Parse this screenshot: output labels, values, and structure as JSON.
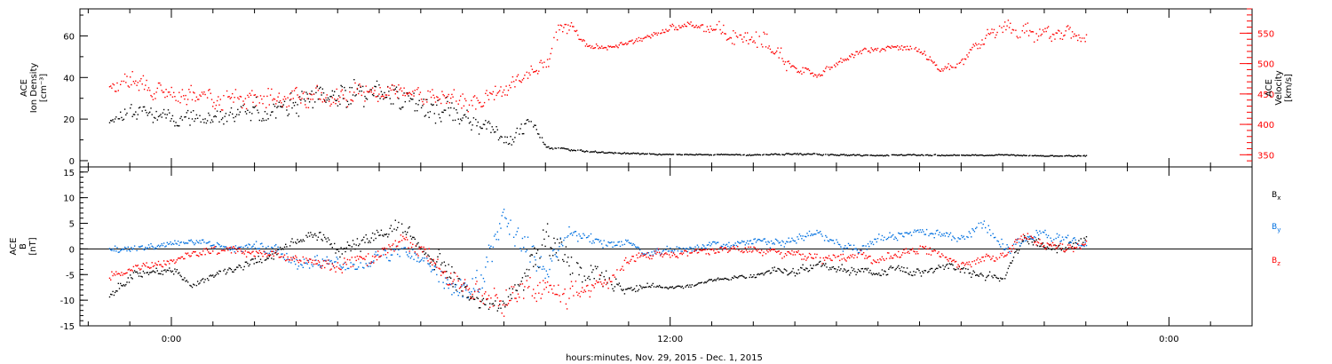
{
  "chart_data": [
    {
      "type": "scatter",
      "panel": "ACE plasma",
      "ylabel_lines": [
        "ACE",
        "Ion Density",
        "[cm⁻³]"
      ],
      "ylim": [
        -3,
        73
      ],
      "yticks": [
        0,
        20,
        40,
        60
      ],
      "y2label_lines": [
        "ACE",
        "Velocity",
        "[km/s]"
      ],
      "y2lim": [
        330,
        590
      ],
      "y2ticks": [
        350,
        400,
        450,
        500,
        550
      ],
      "x_unit": "hours since 0:00 Nov 30, 2015",
      "series": [
        {
          "axis": "left",
          "color": "#000000",
          "x": [
            -1.5,
            -1.0,
            0.0,
            1.0,
            2.0,
            3.0,
            4.0,
            5.0,
            5.5,
            6.0,
            6.5,
            7.0,
            7.5,
            8.0,
            8.4,
            8.6,
            9.0,
            10.0,
            11.0,
            12.0,
            13.0,
            14.0,
            15.0,
            16.0,
            17.0,
            18.0,
            19.0,
            20.0,
            21.0,
            22.0
          ],
          "y": [
            20,
            25,
            22,
            20,
            24,
            27,
            31,
            33,
            32,
            28,
            24,
            21,
            16,
            12,
            14,
            20,
            7,
            4.5,
            3.8,
            3.2,
            3.2,
            3.0,
            3.5,
            3.0,
            2.8,
            3.0,
            2.8,
            3.0,
            2.5,
            2.5
          ],
          "spread": [
            3,
            4,
            5,
            5,
            6,
            7,
            8,
            8,
            8,
            8,
            7,
            6,
            5,
            5,
            4,
            3,
            1,
            0.6,
            0.4,
            0.3,
            0.3,
            0.4,
            0.6,
            0.4,
            0.3,
            0.4,
            0.3,
            0.3,
            0.3,
            0.3
          ]
        },
        {
          "axis": "right",
          "color": "#ff0000",
          "x": [
            -1.5,
            -1.0,
            0.0,
            1.0,
            2.0,
            3.0,
            4.0,
            5.0,
            6.0,
            7.0,
            7.5,
            8.0,
            8.5,
            9.0,
            9.3,
            9.6,
            10.0,
            10.5,
            11.0,
            11.5,
            12.0,
            12.5,
            13.0,
            13.5,
            14.0,
            14.5,
            15.0,
            15.5,
            16.0,
            16.5,
            17.0,
            17.5,
            18.0,
            18.3,
            18.5,
            19.0,
            19.5,
            20.0,
            20.5,
            21.0,
            21.5,
            22.0
          ],
          "y": [
            460,
            470,
            450,
            445,
            440,
            445,
            450,
            455,
            448,
            440,
            445,
            460,
            480,
            500,
            555,
            560,
            530,
            528,
            535,
            545,
            560,
            565,
            555,
            548,
            540,
            528,
            495,
            480,
            500,
            520,
            525,
            528,
            520,
            505,
            490,
            500,
            540,
            560,
            555,
            548,
            550,
            540
          ],
          "spread": [
            10,
            18,
            18,
            18,
            18,
            18,
            18,
            18,
            18,
            18,
            16,
            14,
            12,
            15,
            15,
            12,
            5,
            5,
            5,
            5,
            5,
            5,
            12,
            20,
            22,
            20,
            12,
            6,
            6,
            6,
            5,
            5,
            6,
            6,
            5,
            10,
            15,
            15,
            15,
            15,
            15,
            15
          ]
        }
      ]
    },
    {
      "type": "scatter",
      "panel": "ACE magnetic field",
      "ylabel_lines": [
        "ACE",
        "B",
        "[nT]"
      ],
      "ylim": [
        -15,
        16
      ],
      "yticks": [
        -15,
        -10,
        -5,
        0,
        5,
        10,
        15
      ],
      "zero_line": true,
      "x_unit": "hours since 0:00 Nov 30, 2015",
      "series": [
        {
          "name": "B",
          "subscript": "x",
          "color": "#000000",
          "x": [
            -1.5,
            -1.0,
            0.0,
            0.5,
            1.0,
            1.5,
            2.0,
            2.5,
            3.0,
            3.5,
            4.0,
            4.5,
            5.0,
            5.5,
            6.0,
            6.5,
            7.0,
            7.5,
            8.0,
            8.5,
            9.0,
            9.5,
            10.0,
            10.5,
            11.0,
            11.5,
            12.0,
            12.5,
            13.0,
            13.5,
            14.0,
            14.5,
            15.0,
            15.5,
            16.0,
            16.5,
            17.0,
            17.5,
            18.0,
            18.5,
            19.0,
            19.5,
            20.0,
            20.5,
            21.0,
            21.5,
            22.0
          ],
          "y": [
            -9,
            -5,
            -4,
            -7,
            -5,
            -4,
            -2,
            -1,
            2,
            3,
            0,
            1,
            3,
            5,
            0,
            -3,
            -8,
            -11,
            -10,
            -5,
            3,
            -2,
            -4,
            -6,
            -8,
            -7,
            -7.5,
            -7,
            -6,
            -5.5,
            -5,
            -4,
            -4.5,
            -3,
            -4,
            -4,
            -4.5,
            -3.5,
            -5,
            -3,
            -4,
            -5,
            -5.5,
            2,
            1,
            0,
            2
          ],
          "spread": [
            1,
            1,
            1,
            0.6,
            0.8,
            0.8,
            1,
            1,
            1,
            1,
            1.5,
            1.5,
            1.5,
            1.5,
            2,
            2.5,
            2,
            1.5,
            2,
            3,
            4,
            3,
            3,
            2,
            1,
            0.5,
            0.4,
            0.4,
            0.4,
            0.4,
            0.6,
            0.8,
            0.8,
            1,
            1,
            1,
            1,
            1,
            1,
            1,
            1,
            1,
            0.8,
            1,
            1,
            1,
            1
          ]
        },
        {
          "name": "B",
          "subscript": "y",
          "color": "#0070e0",
          "x": [
            -1.5,
            -1.0,
            0.0,
            0.5,
            1.0,
            1.5,
            2.0,
            2.5,
            3.0,
            3.5,
            4.0,
            4.5,
            5.0,
            5.5,
            6.0,
            6.5,
            7.0,
            7.5,
            8.0,
            8.5,
            9.0,
            9.5,
            10.0,
            10.5,
            11.0,
            11.5,
            12.0,
            12.5,
            13.0,
            13.5,
            14.0,
            14.5,
            15.0,
            15.5,
            16.0,
            16.5,
            17.0,
            17.5,
            18.0,
            18.5,
            19.0,
            19.5,
            20.0,
            20.5,
            21.0,
            21.5,
            22.0
          ],
          "y": [
            0,
            0,
            1,
            1.5,
            1,
            0,
            1,
            0,
            -3,
            -2,
            -2,
            -4,
            -1,
            0,
            -2,
            -6,
            -8,
            -5,
            7,
            0,
            -5,
            3,
            2,
            1,
            1,
            -1,
            0,
            0,
            1,
            1,
            2,
            1,
            2,
            3,
            1,
            0,
            2,
            3,
            4,
            3,
            2,
            5,
            0,
            2,
            3,
            2,
            1
          ],
          "spread": [
            1,
            0.8,
            0.6,
            0.5,
            0.8,
            1,
            1,
            1.5,
            1.5,
            1.5,
            1.5,
            1.5,
            1.5,
            1.5,
            1.5,
            2,
            2,
            3,
            3,
            3,
            3,
            2,
            1.5,
            1,
            1,
            1,
            0.8,
            0.8,
            0.8,
            0.8,
            0.8,
            1,
            1,
            1,
            1,
            1,
            1,
            1,
            0.8,
            1,
            1,
            1.5,
            1.5,
            1,
            1,
            1,
            1
          ]
        },
        {
          "name": "B",
          "subscript": "z",
          "color": "#ff0000",
          "x": [
            -1.5,
            -1.0,
            0.0,
            0.5,
            1.0,
            1.5,
            2.0,
            2.5,
            3.0,
            3.5,
            4.0,
            4.5,
            5.0,
            5.5,
            6.0,
            6.5,
            7.0,
            7.5,
            8.0,
            8.5,
            9.0,
            9.5,
            10.0,
            10.5,
            11.0,
            11.5,
            12.0,
            12.5,
            13.0,
            13.5,
            14.0,
            14.5,
            15.0,
            15.5,
            16.0,
            16.5,
            17.0,
            17.5,
            18.0,
            18.5,
            19.0,
            19.5,
            20.0,
            20.5,
            21.0,
            21.5,
            22.0
          ],
          "y": [
            -5,
            -4,
            -2,
            -1,
            0,
            0,
            -1,
            -1,
            -2,
            -3,
            -3,
            -2,
            -1,
            2,
            0,
            -4,
            -7,
            -9,
            -11,
            -7,
            -8,
            -9,
            -7,
            -6,
            -2,
            -1,
            -1,
            -0.5,
            0,
            0,
            0,
            -0.5,
            -1,
            -1.5,
            -2,
            -1,
            -2,
            -1,
            0,
            -1,
            -3,
            -2,
            -1,
            3,
            1,
            0,
            1
          ],
          "spread": [
            1,
            1,
            1,
            1,
            1,
            1,
            1,
            1,
            1,
            1.5,
            1.5,
            1.5,
            1.5,
            1.5,
            2,
            2,
            2,
            2,
            3,
            3,
            3,
            2.5,
            2,
            1.5,
            1,
            1,
            0.8,
            0.8,
            0.8,
            0.8,
            0.8,
            0.8,
            1,
            1,
            1,
            1,
            1,
            1,
            1,
            1,
            1,
            1,
            1,
            1,
            1,
            1,
            1
          ]
        }
      ]
    }
  ],
  "x_axis": {
    "xlim": [
      -2.2,
      26.0
    ],
    "tick_labels": [
      {
        "x": 0,
        "label": "0:00"
      },
      {
        "x": 12,
        "label": "12:00"
      },
      {
        "x": 24,
        "label": "0:00"
      }
    ],
    "title": "hours:minutes, Nov. 29, 2015 - Dec.  1, 2015"
  }
}
